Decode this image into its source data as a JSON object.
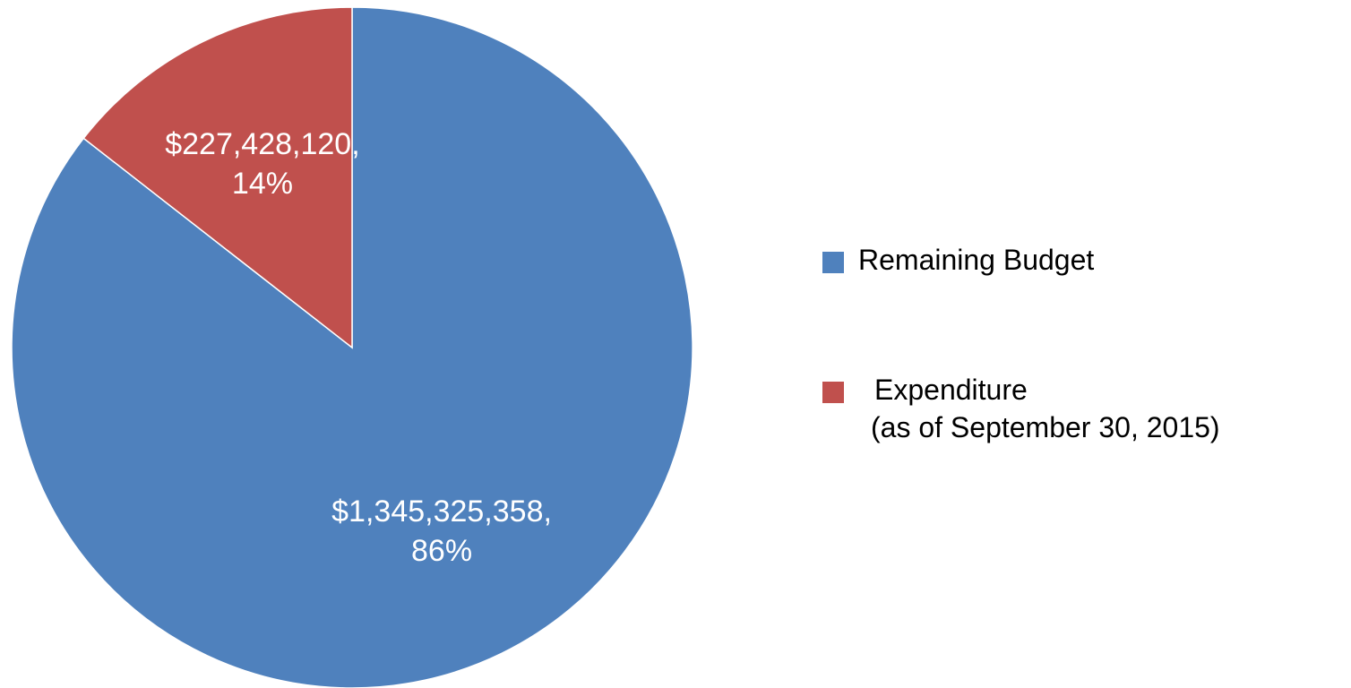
{
  "chart_data": {
    "type": "pie",
    "categories": [
      "Remaining Budget",
      "Expenditure\n(as of September 30, 2015)"
    ],
    "values": [
      1345325358,
      227428120
    ],
    "value_labels": [
      "$1,345,325,358,\n86%",
      "$227,428,120,\n14%"
    ],
    "colors": [
      "#4f81bd",
      "#c0504d"
    ],
    "legend": "right"
  }
}
